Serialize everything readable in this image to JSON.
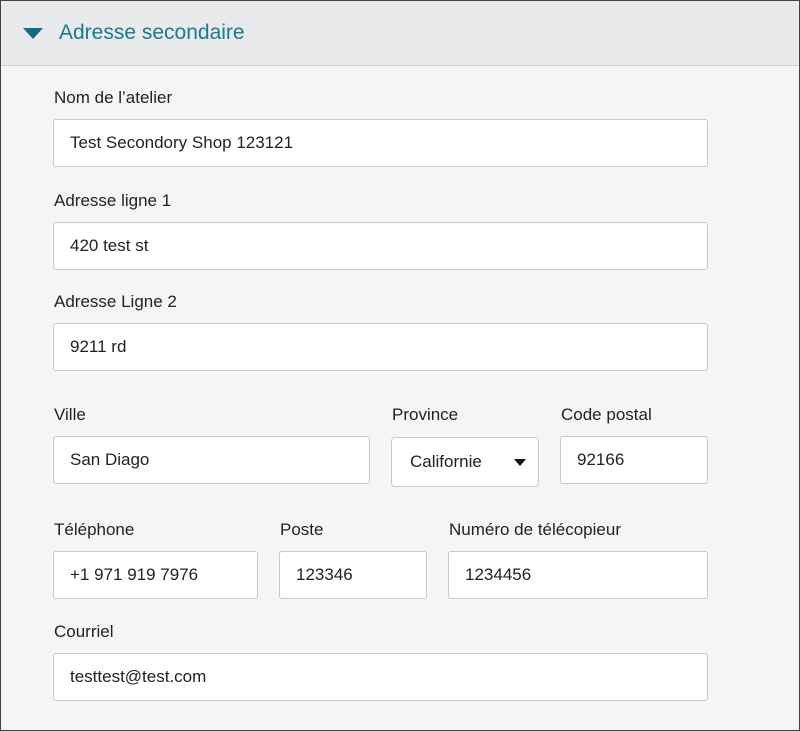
{
  "section": {
    "title": "Adresse secondaire",
    "expanded": true,
    "icon": "caret-down-icon",
    "accent": "#1a7a92"
  },
  "fields": {
    "shop_name": {
      "label": "Nom de l’atelier",
      "value": "Test Secondory Shop 123121"
    },
    "address1": {
      "label": "Adresse ligne 1",
      "value": "420 test st"
    },
    "address2": {
      "label": "Adresse Ligne 2",
      "value": "9211 rd"
    },
    "city": {
      "label": "Ville",
      "value": "San Diago"
    },
    "province": {
      "label": "Province",
      "value": "Californie"
    },
    "postal": {
      "label": "Code postal",
      "value": "92166"
    },
    "phone": {
      "label": "Téléphone",
      "value": "+1 971 919 7976"
    },
    "ext": {
      "label": "Poste",
      "value": "123346"
    },
    "fax": {
      "label": "Numéro de télécopieur",
      "value": "1234456"
    },
    "email": {
      "label": "Courriel",
      "value": "testtest@test.com"
    }
  }
}
